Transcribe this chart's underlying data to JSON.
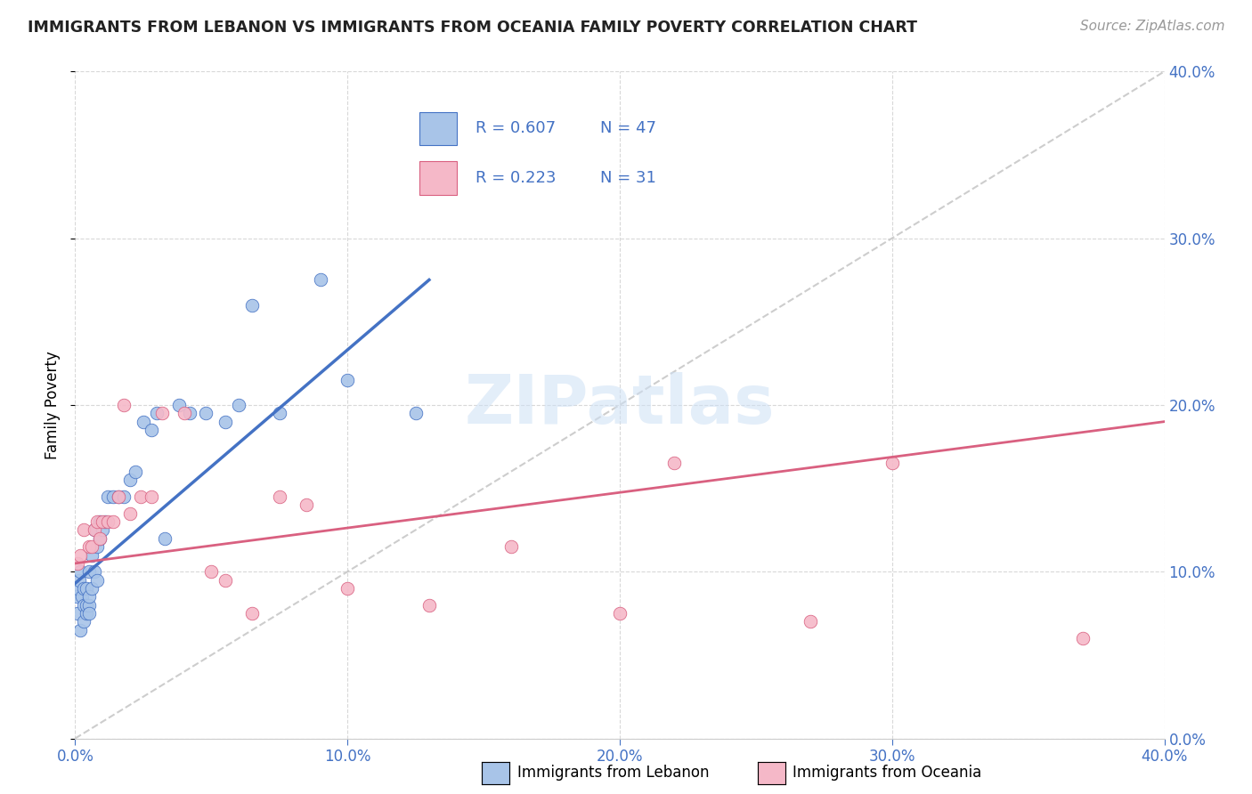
{
  "title": "IMMIGRANTS FROM LEBANON VS IMMIGRANTS FROM OCEANIA FAMILY POVERTY CORRELATION CHART",
  "source": "Source: ZipAtlas.com",
  "ylabel": "Family Poverty",
  "legend1_label": "Immigrants from Lebanon",
  "legend2_label": "Immigrants from Oceania",
  "R1": 0.607,
  "N1": 47,
  "R2": 0.223,
  "N2": 31,
  "watermark": "ZIPatlas",
  "blue_scatter_color": "#a8c4e8",
  "pink_scatter_color": "#f5b8c8",
  "blue_line_color": "#4472c4",
  "pink_line_color": "#d96080",
  "diagonal_color": "#c8c8c8",
  "legend_text_color": "#4472c4",
  "xaxis_label_color": "#4472c4",
  "yaxis_right_color": "#4472c4",
  "title_color": "#222222",
  "source_color": "#999999",
  "grid_color": "#d8d8d8",
  "background_color": "#ffffff",
  "xlim": [
    0.0,
    0.4
  ],
  "ylim": [
    0.0,
    0.4
  ],
  "lebanon_x": [
    0.0005,
    0.001,
    0.001,
    0.0015,
    0.002,
    0.002,
    0.0025,
    0.003,
    0.003,
    0.003,
    0.004,
    0.004,
    0.004,
    0.005,
    0.005,
    0.005,
    0.005,
    0.006,
    0.006,
    0.007,
    0.007,
    0.008,
    0.008,
    0.009,
    0.009,
    0.01,
    0.011,
    0.012,
    0.014,
    0.016,
    0.018,
    0.02,
    0.022,
    0.025,
    0.028,
    0.03,
    0.033,
    0.038,
    0.042,
    0.048,
    0.055,
    0.06,
    0.065,
    0.075,
    0.09,
    0.1,
    0.125
  ],
  "lebanon_y": [
    0.085,
    0.09,
    0.075,
    0.095,
    0.1,
    0.065,
    0.085,
    0.08,
    0.09,
    0.07,
    0.075,
    0.08,
    0.09,
    0.1,
    0.08,
    0.075,
    0.085,
    0.11,
    0.09,
    0.1,
    0.125,
    0.115,
    0.095,
    0.12,
    0.13,
    0.125,
    0.13,
    0.145,
    0.145,
    0.145,
    0.145,
    0.155,
    0.16,
    0.19,
    0.185,
    0.195,
    0.12,
    0.2,
    0.195,
    0.195,
    0.19,
    0.2,
    0.26,
    0.195,
    0.275,
    0.215,
    0.195
  ],
  "oceania_x": [
    0.001,
    0.002,
    0.003,
    0.005,
    0.006,
    0.007,
    0.008,
    0.009,
    0.01,
    0.012,
    0.014,
    0.016,
    0.018,
    0.02,
    0.024,
    0.028,
    0.032,
    0.04,
    0.05,
    0.055,
    0.065,
    0.075,
    0.085,
    0.1,
    0.13,
    0.16,
    0.2,
    0.22,
    0.27,
    0.3,
    0.37
  ],
  "oceania_y": [
    0.105,
    0.11,
    0.125,
    0.115,
    0.115,
    0.125,
    0.13,
    0.12,
    0.13,
    0.13,
    0.13,
    0.145,
    0.2,
    0.135,
    0.145,
    0.145,
    0.195,
    0.195,
    0.1,
    0.095,
    0.075,
    0.145,
    0.14,
    0.09,
    0.08,
    0.115,
    0.075,
    0.165,
    0.07,
    0.165,
    0.06
  ],
  "blue_line_x0": 0.0,
  "blue_line_y0": 0.093,
  "blue_line_x1": 0.13,
  "blue_line_y1": 0.275,
  "pink_line_x0": 0.0,
  "pink_line_y0": 0.105,
  "pink_line_x1": 0.4,
  "pink_line_y1": 0.19
}
